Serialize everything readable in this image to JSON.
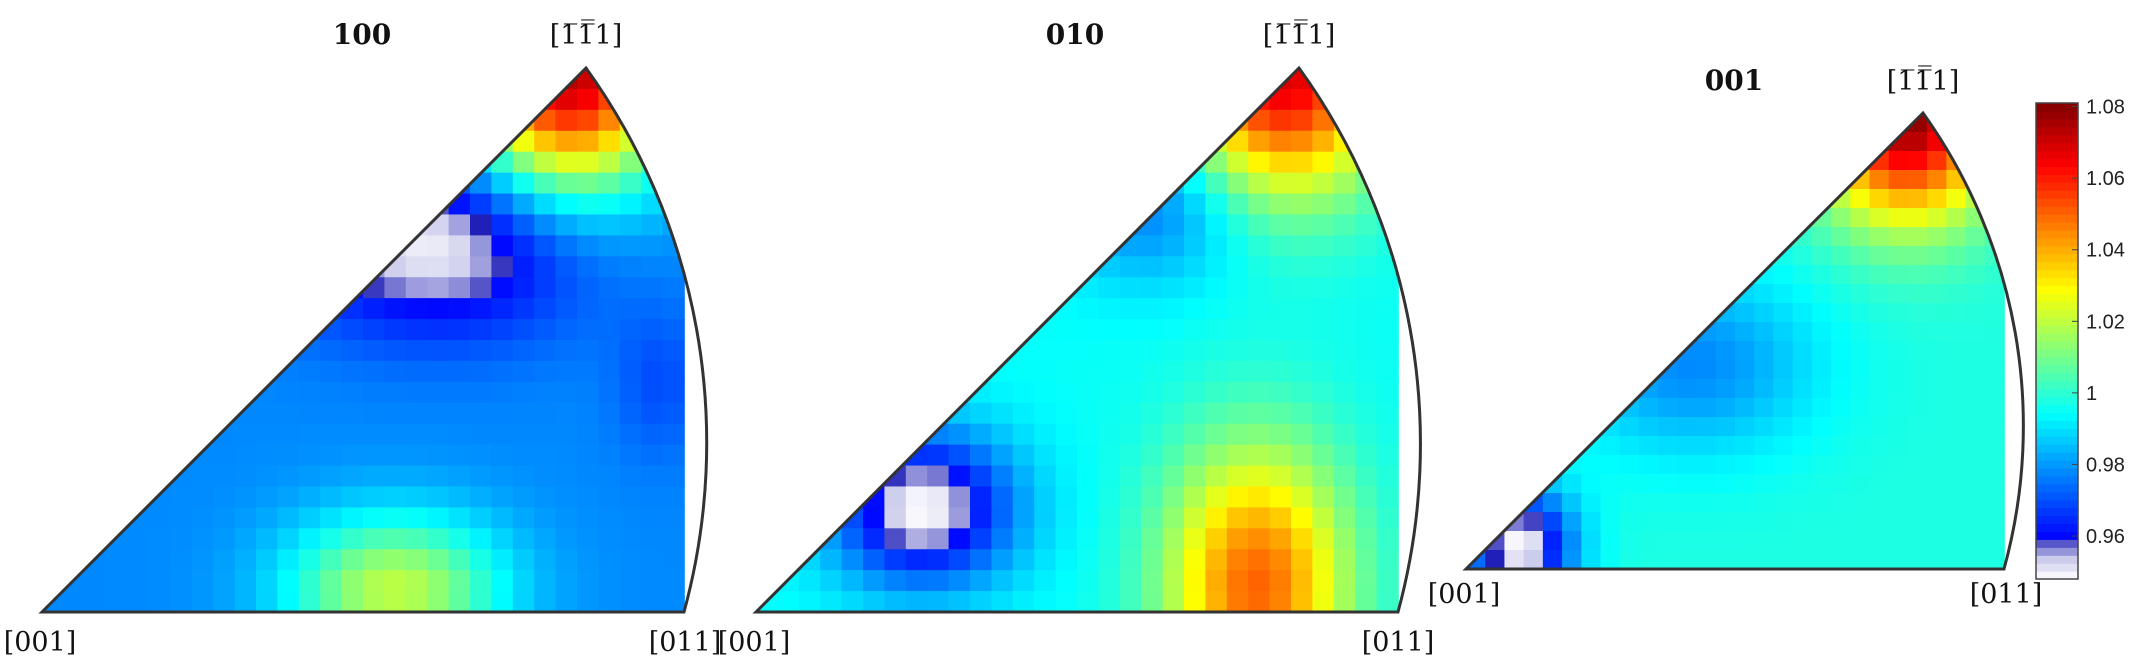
{
  "chart_data": {
    "type": "heatmap",
    "subtype": "inverse-pole-figure",
    "colormap": "jet-with-white-low",
    "colorbar": {
      "range": [
        0.948,
        1.081
      ],
      "ticks": [
        0.96,
        0.98,
        1,
        1.02,
        1.04,
        1.06,
        1.08
      ],
      "tick_labels": [
        "0.96",
        "0.98",
        "1",
        "1.02",
        "1.04",
        "1.06",
        "1.08"
      ],
      "placement": "right"
    },
    "panels": [
      {
        "title": "100",
        "corners": {
          "bottom_left": "[001]",
          "bottom_right": "[011]",
          "top": "[1̅1̅̅1]"
        },
        "corner_value": 1.075,
        "features": [
          {
            "u": 0.62,
            "v": 0.68,
            "value": 0.948,
            "sx": 0.16,
            "sy": 0.12,
            "note": "white minimum near upper-left edge"
          },
          {
            "u": 0.55,
            "v": 0.04,
            "value": 1.02,
            "sx": 0.12,
            "sy": 0.1,
            "note": "green spot at bottom"
          },
          {
            "u": 0.96,
            "v": 0.42,
            "value": 0.97,
            "sx": 0.05,
            "sy": 0.1,
            "note": "slight dip near right arc"
          }
        ],
        "background": 0.978
      },
      {
        "title": "010",
        "corners": {
          "bottom_left": "[001]",
          "bottom_right": "[011]",
          "top": "[1̅1̅̅1]"
        },
        "corner_value": 1.07,
        "features": [
          {
            "u": 0.26,
            "v": 0.19,
            "value": 0.948,
            "sx": 0.1,
            "sy": 0.1,
            "note": "white minimum lower-left"
          },
          {
            "u": 0.78,
            "v": 0.05,
            "value": 1.05,
            "sx": 0.1,
            "sy": 0.18,
            "note": "yellow maximum at bottom"
          },
          {
            "u": 0.62,
            "v": 0.75,
            "value": 0.975,
            "sx": 0.1,
            "sy": 0.1,
            "note": "blue area upper middle"
          }
        ],
        "background": 0.995
      },
      {
        "title": "001",
        "corners": {
          "bottom_left": "[001]",
          "bottom_right": "[011]",
          "top": "[1̅1̅̅1]"
        },
        "corner_value": 1.08,
        "features": [
          {
            "u": 0.1,
            "v": 0.05,
            "value": 0.948,
            "sx": 0.07,
            "sy": 0.09,
            "note": "white minimum at [001] corner"
          },
          {
            "u": 0.42,
            "v": 0.45,
            "value": 0.978,
            "sx": 0.16,
            "sy": 0.14,
            "note": "blue area centre"
          }
        ],
        "background": 0.998
      }
    ]
  }
}
